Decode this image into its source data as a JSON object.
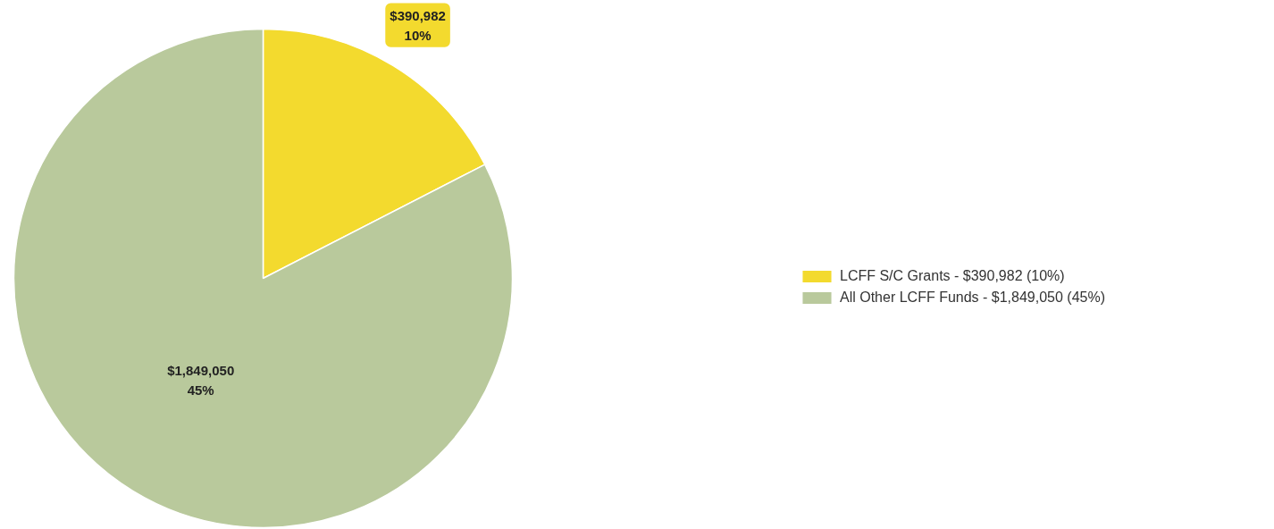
{
  "chart_data": {
    "type": "pie",
    "categories": [
      "LCFF S/C Grants - $390,982 (10%)",
      "All Other LCFF Funds - $1,849,050 (45%)"
    ],
    "values": [
      390982,
      1849050
    ],
    "colors": [
      "#f3da2e",
      "#b9c99c"
    ],
    "value_labels": [
      "$390,982\n10%",
      "$1,849,050\n45%"
    ],
    "legend": "right"
  }
}
